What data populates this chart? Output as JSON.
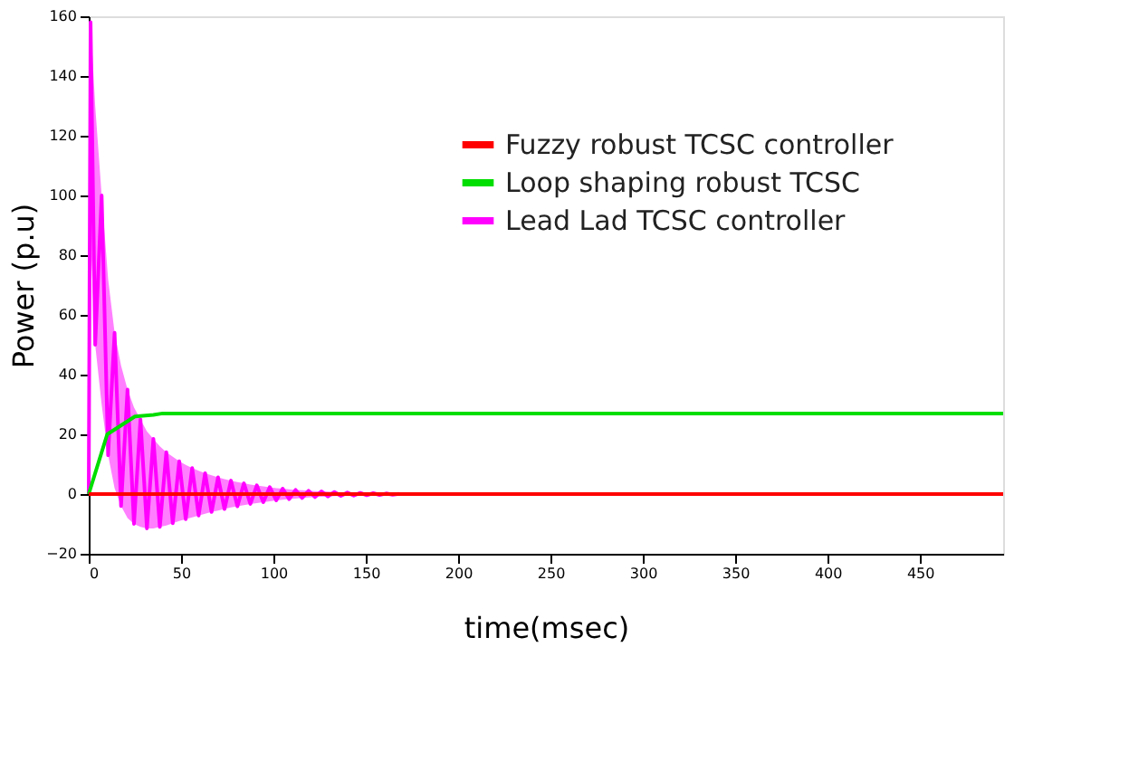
{
  "chart_data": {
    "type": "line",
    "xlabel": "time(msec)",
    "ylabel": "Power (p.u)",
    "xlim": [
      0,
      495
    ],
    "xticks": [
      0,
      50,
      100,
      150,
      200,
      250,
      300,
      350,
      400,
      450
    ],
    "ylim": [
      -20,
      160
    ],
    "yticks": [
      -20,
      0,
      20,
      40,
      60,
      80,
      100,
      120,
      140,
      160
    ],
    "grid": false,
    "legend": "top right",
    "line_style": "solid",
    "marker": "none",
    "series": [
      {
        "name": "Fuzzy robust TCSC controller",
        "color": "#ff0000",
        "x": [
          0,
          495
        ],
        "values": [
          0,
          0
        ]
      },
      {
        "name": "Loop shaping robust TCSC",
        "color": "#00dd00",
        "x": [
          0,
          10,
          25,
          35,
          40,
          495
        ],
        "values": [
          0,
          20,
          26,
          26.5,
          27,
          27
        ]
      },
      {
        "name": "Lead Lad TCSC controller",
        "color": "#ff00ff",
        "x": [
          0,
          1,
          3.5,
          7,
          10.5,
          14,
          17.5,
          21,
          24.5,
          28,
          31.5,
          35,
          38.5,
          42,
          45.5,
          49,
          52.5,
          56,
          59.5,
          63,
          66.5,
          70,
          73.5,
          77,
          80.5,
          84,
          87.5,
          91,
          94.5,
          98,
          101.5,
          105,
          108.5,
          112,
          115.5,
          119,
          122.5,
          126,
          129.5,
          133,
          136.5,
          140,
          143.5,
          147,
          150.5,
          154,
          157.5,
          161,
          164.5,
          168
        ],
        "values": [
          0,
          158,
          50,
          100,
          13,
          54,
          -4,
          35,
          -10,
          25,
          -11.5,
          18.5,
          -11,
          14,
          -9.8,
          11,
          -8.4,
          8.7,
          -7.2,
          7,
          -6,
          5.6,
          -5,
          4.5,
          -4.1,
          3.6,
          -3.3,
          2.9,
          -2.7,
          2.3,
          -2.1,
          1.8,
          -1.7,
          1.4,
          -1.3,
          1.1,
          -1,
          0.9,
          -0.8,
          0.7,
          -0.6,
          0.5,
          -0.5,
          0.4,
          -0.4,
          0.3,
          -0.3,
          0.2,
          -0.2,
          0.1
        ],
        "upper": [
          0,
          158,
          130,
          100,
          72,
          54,
          43,
          35,
          29,
          25,
          21,
          18.5,
          16,
          14,
          12.5,
          11,
          9.8,
          8.7,
          7.8,
          7,
          6.3,
          5.6,
          5,
          4.5,
          4,
          3.6,
          3.2,
          2.9,
          2.6,
          2.3,
          2,
          1.8,
          1.6,
          1.4,
          1.3,
          1.1,
          1,
          0.9,
          0.8,
          0.7,
          0.6,
          0.5,
          0.5,
          0.4,
          0.4,
          0.3,
          0.3,
          0.2,
          0.2,
          0.1
        ],
        "lower": [
          0,
          85,
          50,
          30,
          13,
          2,
          -4,
          -8,
          -10,
          -11,
          -11.5,
          -11.5,
          -11,
          -10.5,
          -9.8,
          -9,
          -8.4,
          -7.8,
          -7.2,
          -6.6,
          -6,
          -5.5,
          -5,
          -4.5,
          -4.1,
          -3.7,
          -3.3,
          -3,
          -2.7,
          -2.4,
          -2.1,
          -1.9,
          -1.7,
          -1.5,
          -1.3,
          -1.1,
          -1,
          -0.9,
          -0.8,
          -0.7,
          -0.6,
          -0.5,
          -0.5,
          -0.4,
          -0.4,
          -0.3,
          -0.3,
          -0.2,
          -0.2,
          -0.1
        ]
      }
    ]
  }
}
